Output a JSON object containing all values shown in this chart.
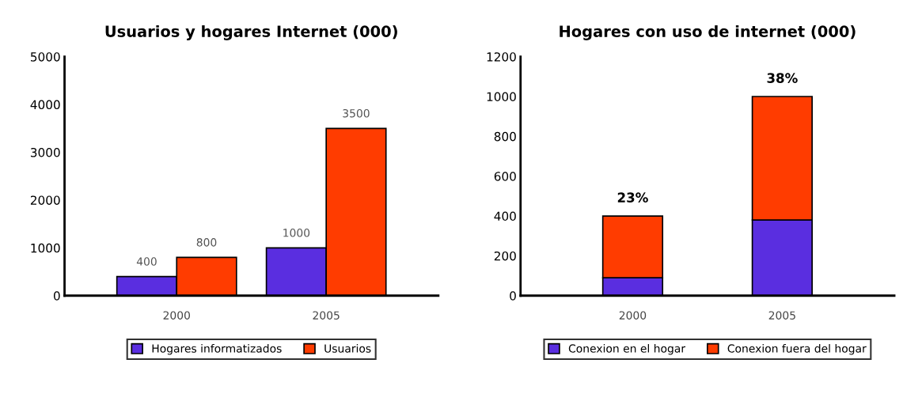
{
  "chart_data": [
    {
      "type": "bar",
      "title": "Usuarios y hogares Internet (000)",
      "categories": [
        "2000",
        "2005"
      ],
      "series": [
        {
          "name": "Hogares informatizados",
          "color": "#5a2ee0",
          "values": [
            400,
            1000
          ]
        },
        {
          "name": "Usuarios",
          "color": "#ff3c00",
          "values": [
            800,
            3500
          ]
        }
      ],
      "ylim": [
        0,
        5000
      ],
      "yticks": [
        0,
        1000,
        2000,
        3000,
        4000,
        5000
      ],
      "data_labels": true,
      "grid": false,
      "legend": "bottom"
    },
    {
      "type": "bar",
      "stacked": true,
      "title": "Hogares con uso de internet (000)",
      "categories": [
        "2000",
        "2005"
      ],
      "series": [
        {
          "name": "Conexion en el hogar",
          "color": "#5a2ee0",
          "values": [
            90,
            380
          ]
        },
        {
          "name": "Conexion fuera del hogar",
          "color": "#ff3c00",
          "values": [
            310,
            620
          ]
        }
      ],
      "ylim": [
        0,
        1200
      ],
      "yticks": [
        0,
        200,
        400,
        600,
        800,
        1000,
        1200
      ],
      "grid": false,
      "legend": "bottom",
      "annotations": [
        {
          "text": "23%",
          "x": "2000",
          "y": 400
        },
        {
          "text": "38%",
          "x": "2005",
          "y": 1000
        }
      ]
    }
  ]
}
